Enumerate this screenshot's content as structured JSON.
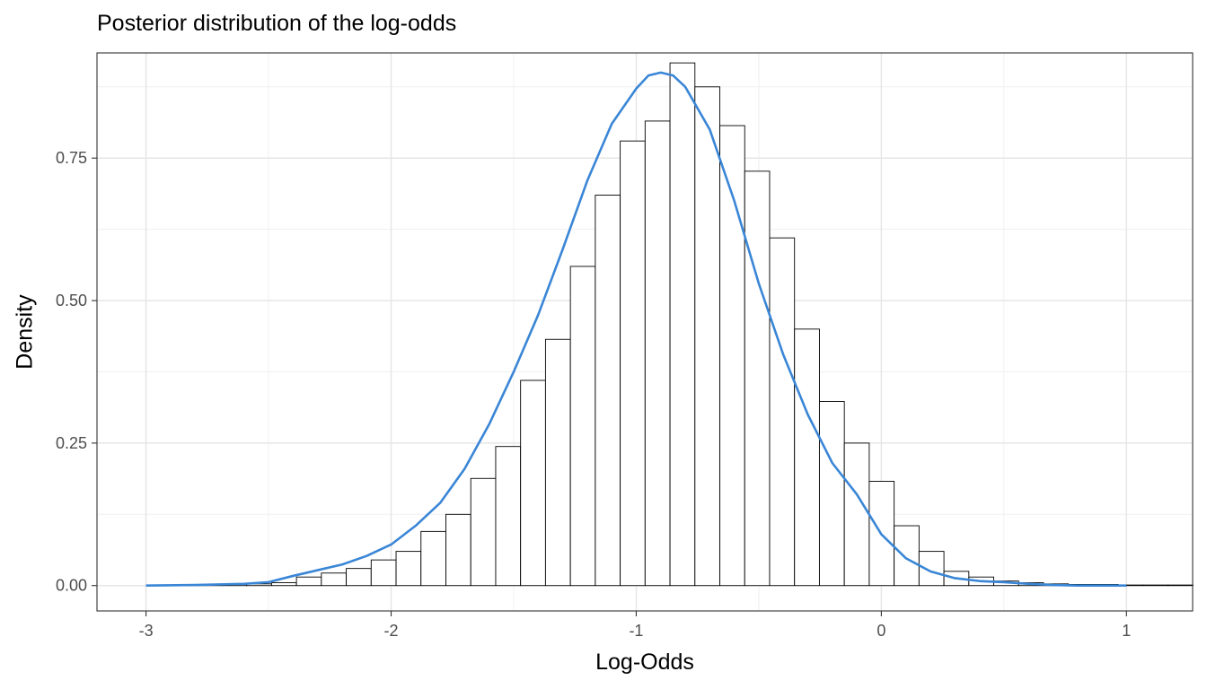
{
  "chart_data": {
    "type": "bar",
    "title": "Posterior distribution of the log-odds",
    "xlabel": "Log-Odds",
    "ylabel": "Density",
    "xlim": [
      -3.2,
      1.27
    ],
    "ylim": [
      -0.0445,
      0.9345
    ],
    "x_ticks": [
      -3,
      -2,
      -1,
      0,
      1
    ],
    "x_tick_labels": [
      "-3",
      "-2",
      "-1",
      "0",
      "1"
    ],
    "y_ticks": [
      0,
      0.25,
      0.5,
      0.75
    ],
    "y_tick_labels": [
      "0.00",
      "0.25",
      "0.50",
      "0.75"
    ],
    "grid": true,
    "histogram": {
      "bin_width": 0.1016,
      "first_bin_left": -2.9958,
      "values": [
        0.001,
        0.001,
        0.002,
        0.002,
        0.003,
        0.005,
        0.015,
        0.022,
        0.03,
        0.045,
        0.06,
        0.095,
        0.125,
        0.188,
        0.244,
        0.36,
        0.432,
        0.56,
        0.685,
        0.78,
        0.815,
        0.917,
        0.875,
        0.807,
        0.727,
        0.61,
        0.45,
        0.323,
        0.25,
        0.183,
        0.105,
        0.06,
        0.025,
        0.015,
        0.008,
        0.005,
        0.003,
        0.002,
        0.002,
        0.001,
        0.001,
        0.001
      ]
    },
    "density_curve": {
      "color": "#3a86d6",
      "x": [
        -3.0,
        -2.8,
        -2.6,
        -2.5,
        -2.4,
        -2.3,
        -2.2,
        -2.1,
        -2.0,
        -1.9,
        -1.8,
        -1.7,
        -1.6,
        -1.5,
        -1.4,
        -1.3,
        -1.2,
        -1.1,
        -1.0,
        -0.95,
        -0.9,
        -0.85,
        -0.8,
        -0.7,
        -0.6,
        -0.5,
        -0.4,
        -0.3,
        -0.2,
        -0.1,
        0.0,
        0.1,
        0.2,
        0.3,
        0.4,
        0.5,
        0.6,
        0.7,
        0.8,
        1.0
      ],
      "y": [
        0.0,
        0.001,
        0.003,
        0.006,
        0.017,
        0.027,
        0.037,
        0.052,
        0.072,
        0.105,
        0.145,
        0.205,
        0.283,
        0.375,
        0.475,
        0.59,
        0.71,
        0.81,
        0.872,
        0.895,
        0.9,
        0.895,
        0.875,
        0.8,
        0.675,
        0.53,
        0.405,
        0.3,
        0.215,
        0.16,
        0.09,
        0.048,
        0.025,
        0.013,
        0.008,
        0.006,
        0.003,
        0.001,
        0.0,
        0.0
      ]
    }
  }
}
